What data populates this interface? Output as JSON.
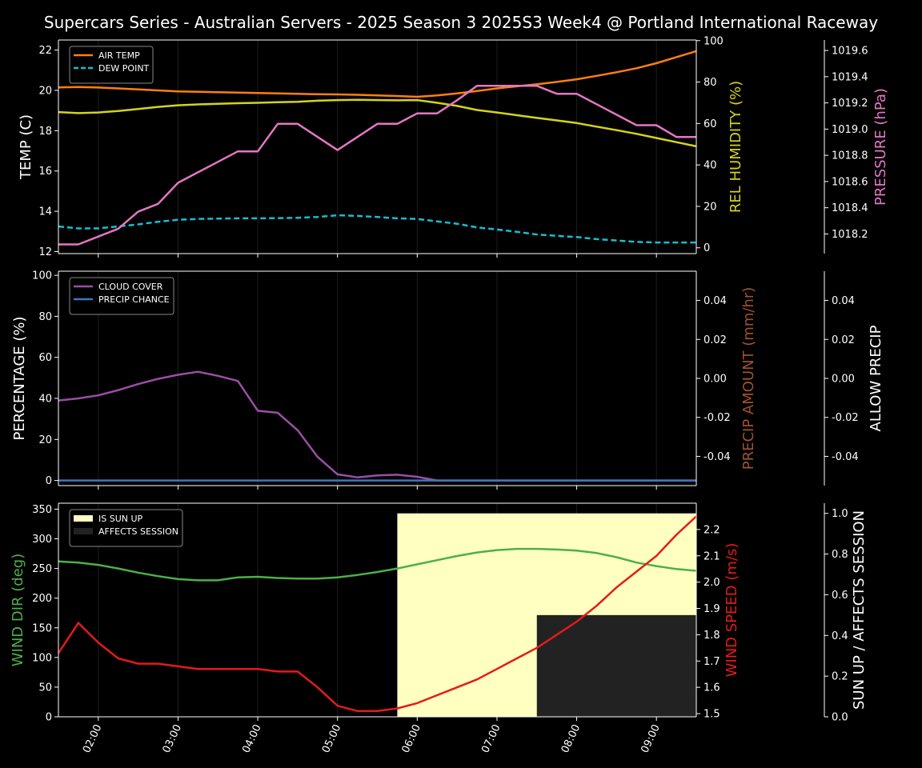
{
  "title": "Supercars Series - Australian Servers - 2025 Season 3 2025S3 Week4 @ Portland International Raceway",
  "colors": {
    "background": "#000000",
    "air_temp": "#ff7f0e",
    "dew_point": "#17becf",
    "humidity": "#d4d41c",
    "pressure": "#e377c2",
    "cloud": "#9b4ea6",
    "precip_chance": "#3a7abf",
    "precip_amount_label": "#a0522d",
    "wind_dir": "#4daf4a",
    "wind_speed": "#e41a1c",
    "sun_up": "#ffffc0",
    "affects_session": "#222222"
  },
  "x_ticks": [
    "02:00",
    "03:00",
    "04:00",
    "05:00",
    "06:00",
    "07:00",
    "08:00",
    "09:00"
  ],
  "chart_data": [
    {
      "type": "line",
      "x": [
        "01:30",
        "01:45",
        "02:00",
        "02:15",
        "02:30",
        "02:45",
        "03:00",
        "03:15",
        "03:30",
        "03:45",
        "04:00",
        "04:15",
        "04:30",
        "04:45",
        "05:00",
        "05:15",
        "05:30",
        "05:45",
        "06:00",
        "06:15",
        "06:30",
        "06:45",
        "07:00",
        "07:15",
        "07:30",
        "07:45",
        "08:00",
        "08:15",
        "08:30",
        "08:45",
        "09:00",
        "09:15",
        "09:30"
      ],
      "series": [
        {
          "name": "AIR TEMP",
          "axis": "TEMP (C)",
          "style": "solid",
          "values": [
            20.15,
            20.17,
            20.14,
            20.1,
            20.05,
            20.0,
            19.95,
            19.93,
            19.91,
            19.89,
            19.87,
            19.85,
            19.83,
            19.81,
            19.8,
            19.78,
            19.75,
            19.72,
            19.68,
            19.75,
            19.85,
            19.97,
            20.1,
            20.2,
            20.3,
            20.42,
            20.55,
            20.72,
            20.9,
            21.1,
            21.35,
            21.65,
            21.95
          ]
        },
        {
          "name": "DEW POINT",
          "axis": "TEMP (C)",
          "style": "dashed",
          "values": [
            13.25,
            13.15,
            13.15,
            13.25,
            13.35,
            13.48,
            13.58,
            13.62,
            13.64,
            13.65,
            13.65,
            13.66,
            13.68,
            13.72,
            13.8,
            13.77,
            13.72,
            13.65,
            13.62,
            13.5,
            13.38,
            13.2,
            13.1,
            12.98,
            12.85,
            12.78,
            12.72,
            12.62,
            12.55,
            12.48,
            12.45,
            12.45,
            12.45
          ]
        },
        {
          "name": "REL HUMIDITY",
          "axis": "REL HUMIDITY (%)",
          "style": "solid",
          "values": [
            65.5,
            65,
            65.3,
            66,
            67,
            68,
            68.8,
            69.2,
            69.5,
            69.8,
            70,
            70.3,
            70.5,
            71,
            71.3,
            71.4,
            71.3,
            71.2,
            71.3,
            70,
            68.5,
            66.5,
            65.3,
            64,
            62.7,
            61.5,
            60.2,
            58.5,
            56.8,
            55,
            53,
            51,
            49
          ]
        },
        {
          "name": "PRESSURE",
          "axis": "PRESSURE (hPa)",
          "style": "solid",
          "values": [
            1018.12,
            1018.12,
            1018.18,
            1018.24,
            1018.37,
            1018.43,
            1018.59,
            1018.67,
            1018.75,
            1018.83,
            1018.83,
            1019.04,
            1019.04,
            1018.94,
            1018.84,
            1018.94,
            1019.04,
            1019.04,
            1019.12,
            1019.12,
            1019.22,
            1019.33,
            1019.33,
            1019.33,
            1019.33,
            1019.27,
            1019.27,
            1019.19,
            1019.11,
            1019.03,
            1019.03,
            1018.94,
            1018.94
          ]
        }
      ],
      "axes": [
        {
          "label": "TEMP (C)",
          "side": "left",
          "ylim": [
            11.9,
            22.5
          ],
          "ticks": [
            12,
            14,
            16,
            18,
            20,
            22
          ]
        },
        {
          "label": "REL HUMIDITY (%)",
          "side": "right",
          "ylim": [
            -2.8,
            100.3
          ],
          "ticks": [
            0,
            20,
            40,
            60,
            80,
            100
          ]
        },
        {
          "label": "PRESSURE (hPa)",
          "side": "right-outer",
          "ylim": [
            1018.05,
            1019.68
          ],
          "ticks": [
            1018.2,
            1018.4,
            1018.6,
            1018.8,
            1019.0,
            1019.2,
            1019.4,
            1019.6
          ]
        }
      ],
      "legend": "top-left"
    },
    {
      "type": "line",
      "x": [
        "01:30",
        "01:45",
        "02:00",
        "02:15",
        "02:30",
        "02:45",
        "03:00",
        "03:15",
        "03:30",
        "03:45",
        "04:00",
        "04:15",
        "04:30",
        "04:45",
        "05:00",
        "05:15",
        "05:30",
        "05:45",
        "06:00",
        "06:15",
        "06:30",
        "06:45",
        "07:00",
        "07:15",
        "07:30",
        "07:45",
        "08:00",
        "08:15",
        "08:30",
        "08:45",
        "09:00",
        "09:15",
        "09:30"
      ],
      "series": [
        {
          "name": "CLOUD COVER",
          "axis": "PERCENTAGE (%)",
          "values": [
            39,
            40,
            41.5,
            44,
            47,
            49.5,
            51.5,
            53,
            51,
            48.5,
            34,
            33,
            24.5,
            11.5,
            3,
            1.5,
            2.5,
            2.8,
            1.8,
            0,
            0,
            0,
            0,
            0,
            0,
            0,
            0,
            0,
            0,
            0,
            0,
            0,
            0
          ]
        },
        {
          "name": "PRECIP CHANCE",
          "axis": "PERCENTAGE (%)",
          "values": [
            0,
            0,
            0,
            0,
            0,
            0,
            0,
            0,
            0,
            0,
            0,
            0,
            0,
            0,
            0,
            0,
            0,
            0,
            0,
            0,
            0,
            0,
            0,
            0,
            0,
            0,
            0,
            0,
            0,
            0,
            0,
            0,
            0
          ]
        }
      ],
      "axes": [
        {
          "label": "PERCENTAGE (%)",
          "side": "left",
          "ylim": [
            -2.5,
            102
          ],
          "ticks": [
            0,
            20,
            40,
            60,
            80,
            100
          ]
        },
        {
          "label": "PRECIP AMOUNT (mm/hr)",
          "side": "right",
          "ylim": [
            -0.055,
            0.055
          ],
          "ticks": [
            -0.04,
            -0.02,
            0.0,
            0.02,
            0.04
          ]
        },
        {
          "label": "ALLOW PRECIP",
          "side": "right-outer",
          "ylim": [
            -0.055,
            0.055
          ],
          "ticks": [
            -0.04,
            -0.02,
            0.0,
            0.02,
            0.04
          ]
        }
      ],
      "legend": "top-left"
    },
    {
      "type": "line",
      "x": [
        "01:30",
        "01:45",
        "02:00",
        "02:15",
        "02:30",
        "02:45",
        "03:00",
        "03:15",
        "03:30",
        "03:45",
        "04:00",
        "04:15",
        "04:30",
        "04:45",
        "05:00",
        "05:15",
        "05:30",
        "05:45",
        "06:00",
        "06:15",
        "06:30",
        "06:45",
        "07:00",
        "07:15",
        "07:30",
        "07:45",
        "08:00",
        "08:15",
        "08:30",
        "08:45",
        "09:00",
        "09:15",
        "09:30"
      ],
      "series": [
        {
          "name": "WIND DIR",
          "axis": "WIND DIR (deg)",
          "values": [
            262,
            260,
            256,
            250,
            243,
            237,
            232,
            230,
            230,
            235,
            236,
            234,
            233,
            233,
            235,
            239,
            244,
            250,
            257,
            264,
            271,
            277,
            281,
            283,
            283,
            282,
            280,
            276,
            269,
            260,
            254,
            249,
            246
          ]
        },
        {
          "name": "WIND SPEED",
          "axis": "WIND SPEED (m/s)",
          "values": [
            1.73,
            1.845,
            1.77,
            1.71,
            1.69,
            1.69,
            1.68,
            1.67,
            1.67,
            1.67,
            1.67,
            1.66,
            1.66,
            1.6,
            1.53,
            1.51,
            1.51,
            1.52,
            1.54,
            1.57,
            1.6,
            1.63,
            1.67,
            1.71,
            1.75,
            1.8,
            1.85,
            1.91,
            1.98,
            2.04,
            2.1,
            2.18,
            2.25
          ]
        }
      ],
      "bands": [
        {
          "name": "IS SUN UP",
          "from": "05:45",
          "to": "09:30",
          "value": 1.0
        },
        {
          "name": "AFFECTS SESSION",
          "from": "07:30",
          "to": "09:30",
          "value": 0.5
        }
      ],
      "axes": [
        {
          "label": "WIND DIR (deg)",
          "side": "left",
          "ylim": [
            0,
            360
          ],
          "ticks": [
            0,
            50,
            100,
            150,
            200,
            250,
            300,
            350
          ]
        },
        {
          "label": "WIND SPEED (m/s)",
          "side": "right",
          "ylim": [
            1.488,
            2.3
          ],
          "ticks": [
            1.5,
            1.6,
            1.7,
            1.8,
            1.9,
            2.0,
            2.1,
            2.2
          ]
        },
        {
          "label": "SUN UP / AFFECTS SESSION",
          "side": "right-outer",
          "ylim": [
            0,
            1.05
          ],
          "ticks": [
            0.0,
            0.2,
            0.4,
            0.6,
            0.8,
            1.0
          ]
        }
      ],
      "legend": "top-left"
    }
  ]
}
